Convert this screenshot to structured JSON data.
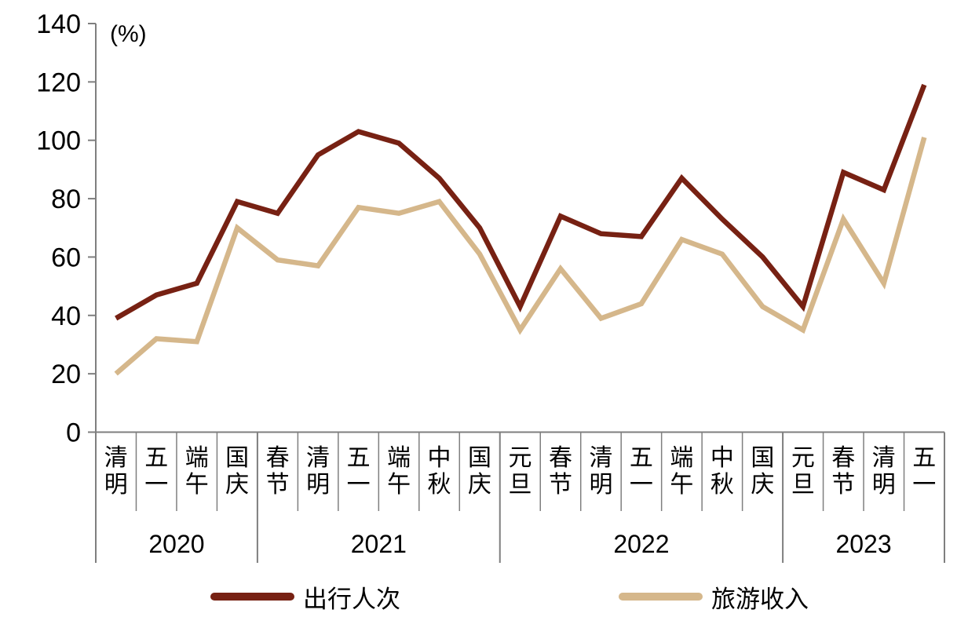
{
  "chart_data": {
    "type": "line",
    "title": "",
    "xlabel": "",
    "ylabel": "(%)",
    "ylim": [
      0,
      140
    ],
    "yticks": [
      0,
      20,
      40,
      60,
      80,
      100,
      120,
      140
    ],
    "grid": false,
    "legend_position": "bottom",
    "axis_color": "#7f7f7f",
    "text_color": "#000000",
    "categories": [
      "清明",
      "五一",
      "端午",
      "国庆",
      "春节",
      "清明",
      "五一",
      "端午",
      "中秋",
      "国庆",
      "元旦",
      "春节",
      "清明",
      "五一",
      "端午",
      "中秋",
      "国庆",
      "元旦",
      "春节",
      "清明",
      "五一"
    ],
    "year_groups": [
      {
        "label": "2020",
        "count": 4
      },
      {
        "label": "2021",
        "count": 6
      },
      {
        "label": "2022",
        "count": 7
      },
      {
        "label": "2023",
        "count": 4
      }
    ],
    "series": [
      {
        "name": "出行人次",
        "color": "#772113",
        "values": [
          39,
          47,
          51,
          79,
          75,
          95,
          103,
          99,
          87,
          70,
          43,
          74,
          68,
          67,
          87,
          73,
          60,
          43,
          89,
          83,
          119
        ]
      },
      {
        "name": "旅游收入",
        "color": "#d5b78b",
        "values": [
          20,
          32,
          31,
          70,
          59,
          57,
          77,
          75,
          79,
          61,
          35,
          56,
          39,
          44,
          66,
          61,
          43,
          35,
          73,
          51,
          101
        ]
      }
    ]
  }
}
